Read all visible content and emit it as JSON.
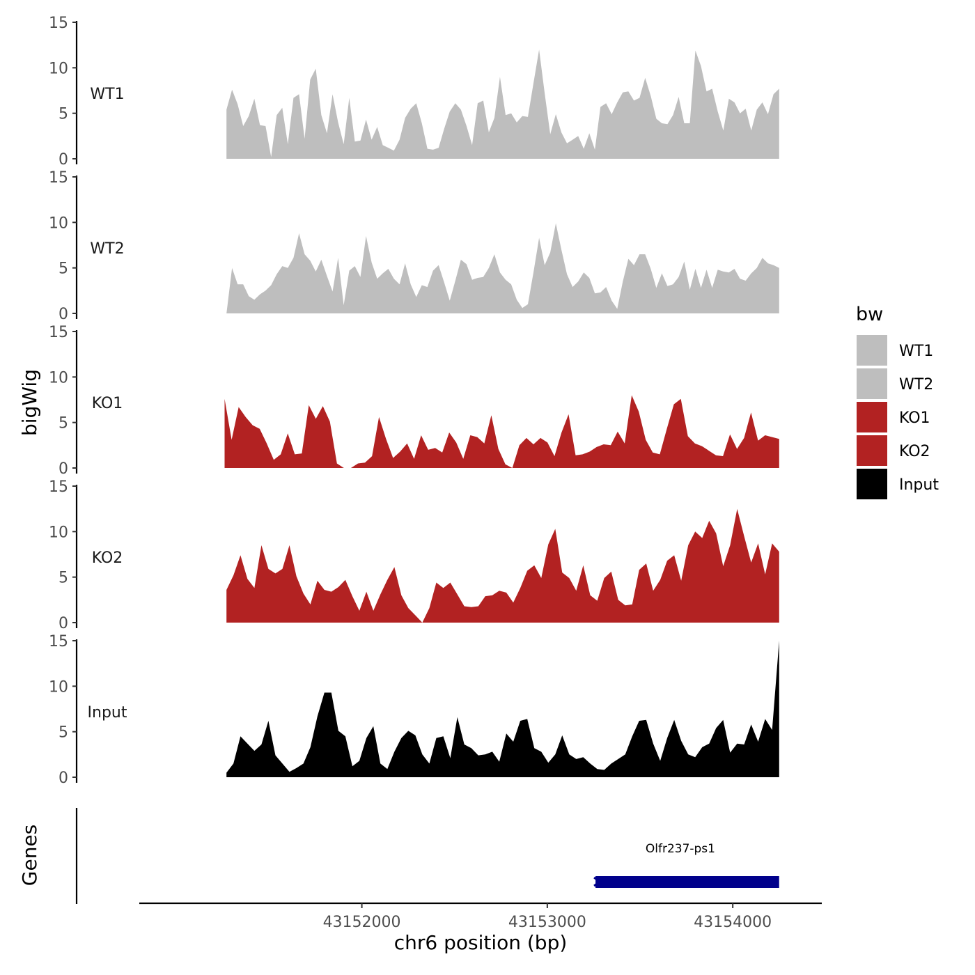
{
  "chart_data": {
    "type": "area",
    "ylabel": "bigWig",
    "xlabel": "chr6 position (bp)",
    "track_panel_label": "Genes",
    "x_range": [
      43150800,
      43154480
    ],
    "ylim": [
      0,
      15
    ],
    "y_ticks": [
      "0",
      "5",
      "10",
      "15"
    ],
    "x_ticks": [
      {
        "value": 43152000,
        "label": "43152000"
      },
      {
        "value": 43153000,
        "label": "43153000"
      },
      {
        "value": 43154000,
        "label": "43154000"
      }
    ],
    "legend": {
      "title": "bw",
      "placement": "right",
      "entries": [
        {
          "label": "WT1",
          "color": "#bebebe"
        },
        {
          "label": "WT2",
          "color": "#bebebe"
        },
        {
          "label": "KO1",
          "color": "#b22222"
        },
        {
          "label": "KO2",
          "color": "#b22222"
        },
        {
          "label": "Input",
          "color": "#000000"
        }
      ]
    },
    "series": [
      {
        "name": "WT1",
        "color": "#bebebe",
        "x_start": 43151270,
        "x_end": 43154250,
        "values": [
          5.4,
          7.6,
          6.0,
          3.6,
          4.7,
          6.6,
          3.7,
          3.6,
          0.2,
          4.8,
          5.6,
          1.6,
          6.7,
          7.1,
          2.2,
          8.7,
          9.9,
          4.8,
          2.8,
          7.1,
          4.0,
          1.6,
          6.7,
          1.9,
          2.0,
          4.3,
          2.1,
          3.5,
          1.5,
          1.2,
          0.9,
          2.1,
          4.5,
          5.5,
          6.1,
          3.9,
          1.1,
          1.0,
          1.2,
          3.3,
          5.2,
          6.1,
          5.4,
          3.6,
          1.5,
          6.1,
          6.4,
          2.9,
          4.5,
          9.0,
          4.8,
          5.0,
          4.0,
          4.7,
          4.6,
          8.3,
          12.0,
          7.2,
          2.7,
          4.9,
          2.9,
          1.7,
          2.1,
          2.5,
          1.1,
          2.8,
          1.0,
          5.7,
          6.1,
          4.9,
          6.2,
          7.3,
          7.4,
          6.4,
          6.7,
          8.9,
          6.9,
          4.4,
          3.9,
          3.8,
          4.8,
          6.8,
          3.9,
          3.9,
          11.9,
          10.2,
          7.4,
          7.7,
          5.2,
          3.1,
          6.6,
          6.2,
          5.0,
          5.5,
          3.1,
          5.4,
          6.2,
          4.9,
          7.1,
          7.7
        ]
      },
      {
        "name": "WT2",
        "color": "#bebebe",
        "x_start": 43151270,
        "x_end": 43154250,
        "values": [
          0.0,
          5.0,
          3.2,
          3.2,
          1.9,
          1.5,
          2.1,
          2.5,
          3.1,
          4.3,
          5.2,
          5.0,
          6.1,
          8.8,
          6.5,
          5.8,
          4.6,
          5.9,
          4.1,
          2.4,
          6.1,
          0.9,
          4.7,
          5.2,
          4.0,
          8.5,
          5.6,
          3.8,
          4.4,
          4.9,
          3.8,
          3.2,
          5.5,
          3.2,
          1.8,
          3.1,
          2.9,
          4.7,
          5.3,
          3.4,
          1.4,
          3.6,
          5.9,
          5.4,
          3.7,
          3.9,
          4.0,
          5.0,
          6.5,
          4.5,
          3.7,
          3.2,
          1.5,
          0.6,
          1.0,
          4.5,
          8.3,
          5.3,
          6.7,
          9.9,
          7.0,
          4.3,
          2.9,
          3.5,
          4.5,
          3.9,
          2.2,
          2.3,
          2.9,
          1.4,
          0.5,
          3.5,
          6.0,
          5.3,
          6.5,
          6.5,
          4.9,
          2.8,
          4.4,
          3.0,
          3.2,
          4.0,
          5.7,
          2.6,
          4.9,
          2.8,
          4.8,
          2.8,
          4.8,
          4.6,
          4.5,
          4.9,
          3.8,
          3.6,
          4.4,
          5.0,
          6.1,
          5.5,
          5.3,
          5.0
        ]
      },
      {
        "name": "KO1",
        "color": "#b22222",
        "x_start": 43151260,
        "x_end": 43154250,
        "values": [
          7.6,
          3.1,
          6.7,
          5.6,
          4.7,
          4.3,
          2.7,
          0.9,
          1.5,
          3.8,
          1.5,
          1.6,
          6.9,
          5.4,
          6.8,
          5.1,
          0.5,
          0.0,
          0.0,
          0.5,
          0.6,
          1.3,
          5.6,
          3.2,
          1.1,
          1.8,
          2.7,
          1.0,
          3.6,
          2.0,
          2.2,
          1.7,
          3.9,
          2.8,
          1.0,
          3.6,
          3.4,
          2.7,
          5.8,
          2.1,
          0.4,
          0.0,
          2.5,
          3.3,
          2.6,
          3.3,
          2.8,
          1.3,
          3.9,
          5.9,
          1.4,
          1.5,
          1.8,
          2.3,
          2.6,
          2.5,
          4.0,
          2.7,
          8.0,
          6.2,
          3.1,
          1.7,
          1.5,
          4.3,
          7.0,
          7.6,
          3.5,
          2.7,
          2.4,
          1.9,
          1.4,
          1.3,
          3.7,
          2.1,
          3.3,
          6.1,
          3.0,
          3.6,
          3.4,
          3.2
        ]
      },
      {
        "name": "KO2",
        "color": "#b22222",
        "x_start": 43151270,
        "x_end": 43154250,
        "values": [
          3.6,
          5.2,
          7.4,
          4.8,
          3.8,
          8.5,
          5.9,
          5.4,
          5.9,
          8.5,
          5.1,
          3.2,
          2.0,
          4.6,
          3.6,
          3.4,
          3.9,
          4.7,
          2.9,
          1.3,
          3.4,
          1.3,
          3.1,
          4.7,
          6.1,
          3.0,
          1.6,
          0.8,
          0.0,
          1.6,
          4.4,
          3.8,
          4.4,
          3.1,
          1.8,
          1.7,
          1.8,
          2.9,
          3.0,
          3.5,
          3.3,
          2.2,
          3.8,
          5.7,
          6.3,
          4.9,
          8.6,
          10.3,
          5.5,
          4.9,
          3.5,
          6.3,
          3.0,
          2.4,
          4.9,
          5.6,
          2.5,
          1.9,
          2.0,
          5.8,
          6.5,
          3.5,
          4.7,
          6.8,
          7.4,
          4.6,
          8.5,
          10.0,
          9.3,
          11.2,
          9.8,
          6.2,
          8.5,
          12.5,
          9.5,
          6.6,
          8.7,
          5.3,
          8.7,
          7.8
        ]
      },
      {
        "name": "Input",
        "color": "#000000",
        "x_start": 43151270,
        "x_end": 43154250,
        "values": [
          0.5,
          1.5,
          4.5,
          3.7,
          2.9,
          3.6,
          6.2,
          2.4,
          1.5,
          0.6,
          1.0,
          1.5,
          3.3,
          6.7,
          9.3,
          9.3,
          5.1,
          4.5,
          1.2,
          1.8,
          4.3,
          5.6,
          1.5,
          0.9,
          2.8,
          4.3,
          5.1,
          4.6,
          2.5,
          1.5,
          4.3,
          4.5,
          2.1,
          6.6,
          3.6,
          3.2,
          2.4,
          2.5,
          2.8,
          1.7,
          4.8,
          3.9,
          6.2,
          6.4,
          3.2,
          2.8,
          1.6,
          2.5,
          4.6,
          2.5,
          2.0,
          2.2,
          1.5,
          0.9,
          0.8,
          1.5,
          2.0,
          2.5,
          4.5,
          6.2,
          6.3,
          3.7,
          1.8,
          4.3,
          6.3,
          4.0,
          2.5,
          2.2,
          3.3,
          3.7,
          5.4,
          6.3,
          2.7,
          3.7,
          3.6,
          5.8,
          3.9,
          6.4,
          5.2,
          15.0
        ]
      }
    ],
    "genes": [
      {
        "name": "Olfr237-ps1",
        "start": 43153260,
        "end": 43154250,
        "strand": "-",
        "color": "#00008b"
      }
    ]
  }
}
